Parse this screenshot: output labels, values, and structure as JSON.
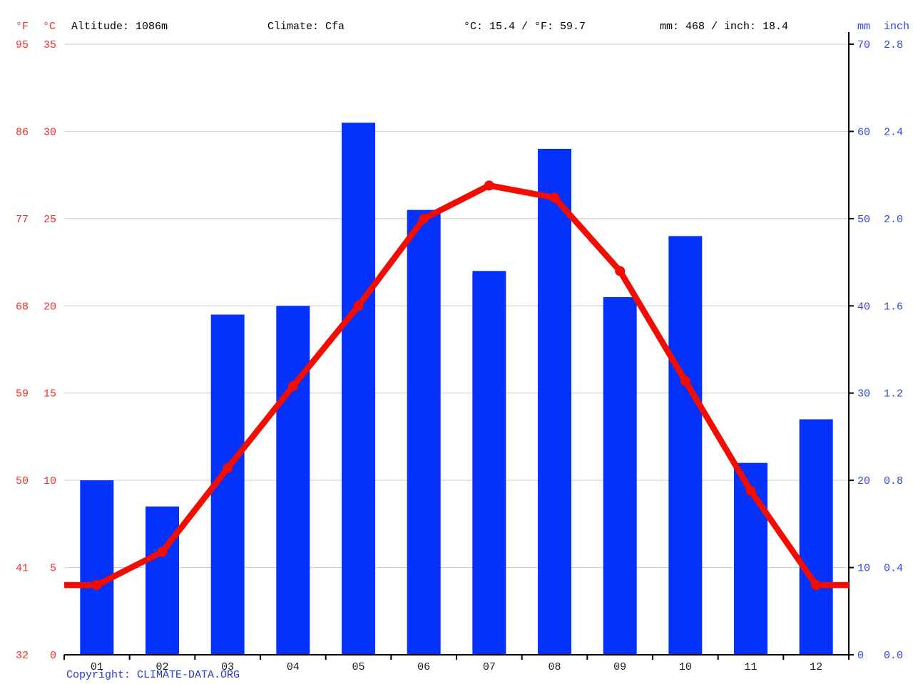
{
  "header": {
    "f_label": "°F",
    "c_label": "°C",
    "altitude": "Altitude: 1086m",
    "climate": "Climate: Cfa",
    "temperature_summary": "°C: 15.4 / °F: 59.7",
    "precipitation_summary": "mm: 468 / inch: 18.4",
    "mm_label": "mm",
    "inch_label": "inch"
  },
  "footer": {
    "copyright": "Copyright: CLIMATE-DATA.ORG"
  },
  "colors": {
    "bar_blue": "#0432fa",
    "line_red": "#f20d02",
    "left_axis_red": "#fb2d24",
    "right_axis_blue": "#2e46e3",
    "copyright_blue": "#2438cf",
    "gridline_gray": "#cbcbcb",
    "axis_black": "#000000",
    "month_label_black": "#1a1a1a"
  },
  "chart_data": {
    "type": "bar",
    "subtype": "climate chart: precipitation bars + temperature line overlay",
    "title": "",
    "categories": [
      "01",
      "02",
      "03",
      "04",
      "05",
      "06",
      "07",
      "08",
      "09",
      "10",
      "11",
      "12"
    ],
    "series": [
      {
        "name": "Precipitation",
        "type": "bar",
        "unit": "mm",
        "values": [
          20,
          17,
          39,
          40,
          61,
          51,
          44,
          58,
          41,
          48,
          22,
          27
        ]
      },
      {
        "name": "Temperature",
        "type": "line",
        "unit": "°C",
        "values": [
          4.0,
          5.9,
          10.7,
          15.4,
          20.0,
          25.0,
          26.9,
          26.2,
          22.0,
          15.7,
          9.4,
          4.0
        ]
      }
    ],
    "left_axis": {
      "unit_f": "°F",
      "unit_c": "°C",
      "ticks_f": [
        95,
        86,
        77,
        68,
        59,
        50,
        41,
        32
      ],
      "ticks_c": [
        35,
        30,
        25,
        20,
        15,
        10,
        5,
        0
      ],
      "range_c": [
        0,
        35
      ]
    },
    "right_axis": {
      "unit_mm": "mm",
      "unit_inch": "inch",
      "ticks_mm": [
        70,
        60,
        50,
        40,
        30,
        20,
        10,
        0
      ],
      "ticks_inch": [
        "2.8",
        "2.4",
        "2.0",
        "1.6",
        "1.2",
        "0.8",
        "0.4",
        "0.0"
      ],
      "range_mm": [
        0,
        70
      ]
    },
    "grid": true,
    "legend": "none",
    "annotations": {
      "altitude": "Altitude: 1086m",
      "climate_classification": "Cfa",
      "mean_temperature_c": 15.4,
      "mean_temperature_f": 59.7,
      "total_precipitation_mm": 468,
      "total_precipitation_inch": 18.4
    }
  }
}
